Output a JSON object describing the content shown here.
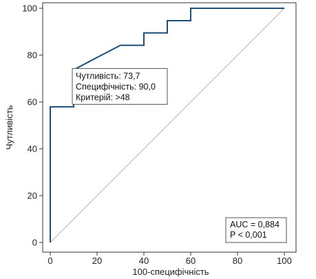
{
  "chart_data": {
    "type": "line",
    "xlabel": "100-специфічність",
    "ylabel": "Чутливість",
    "xlim": [
      0,
      100
    ],
    "ylim": [
      0,
      100
    ],
    "x_ticks": [
      0,
      20,
      40,
      60,
      80,
      100
    ],
    "y_ticks": [
      0,
      20,
      40,
      60,
      80,
      100
    ],
    "grid": false,
    "series": [
      {
        "kind": "roc-curve",
        "color": "#1f4e79",
        "points": [
          [
            0,
            0
          ],
          [
            0,
            57.9
          ],
          [
            10,
            57.9
          ],
          [
            10,
            73.7
          ],
          [
            20,
            79
          ],
          [
            30,
            84.2
          ],
          [
            40,
            84.2
          ],
          [
            40,
            89.5
          ],
          [
            50,
            89.5
          ],
          [
            50,
            94.7
          ],
          [
            60,
            94.7
          ],
          [
            60,
            100
          ],
          [
            100,
            100
          ]
        ]
      },
      {
        "kind": "reference-diagonal",
        "color": "#b8b8b8",
        "points": [
          [
            0,
            0
          ],
          [
            100,
            100
          ]
        ]
      }
    ],
    "criterion_point": {
      "x": 10,
      "y": 73.7
    },
    "annotations": {
      "criterion_box": {
        "lines": [
          "Чутливість: 73,7",
          "Специфічність: 90,0",
          "Критерій: >48"
        ]
      },
      "auc_box": {
        "lines": [
          "AUC = 0,884",
          "P < 0,001"
        ]
      }
    }
  }
}
